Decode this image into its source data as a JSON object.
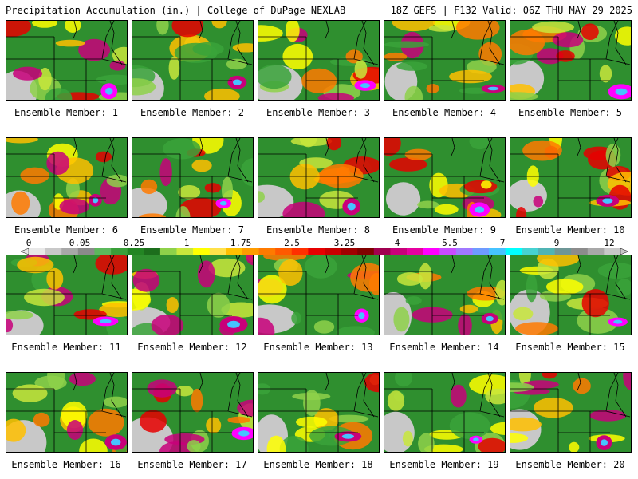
{
  "header": {
    "left": "Precipitation Accumulation (in.) | College of DuPage NEXLAB",
    "right": "18Z GEFS | F132 Valid: 06Z THU MAY 29 2025"
  },
  "color_scale": {
    "labels": [
      "0",
      "0.05",
      "0.25",
      "1",
      "1.75",
      "2.5",
      "3.25",
      "4",
      "5.5",
      "7",
      "9",
      "12"
    ],
    "colors": [
      "#e8e8e8",
      "#c8c8c8",
      "#a8a8a8",
      "#8a8a8a",
      "#5cb85c",
      "#3a9f3a",
      "#238523",
      "#1c6e1c",
      "#8ed14a",
      "#c8e63c",
      "#ffff00",
      "#ffe14a",
      "#ffc000",
      "#ff9c00",
      "#ff7a00",
      "#ff5a00",
      "#ff3000",
      "#e60000",
      "#c80000",
      "#a00000",
      "#800000",
      "#a00050",
      "#c8007a",
      "#e600a0",
      "#ff00ff",
      "#c84bff",
      "#a078ff",
      "#6e9bff",
      "#46c3ff",
      "#00ffff",
      "#46d2d2",
      "#50b4b4",
      "#6e9696",
      "#8c8c8c",
      "#a8a8a8",
      "#c8c8c8"
    ]
  },
  "members": [
    {
      "label": "Ensemble Member: 1"
    },
    {
      "label": "Ensemble Member: 2"
    },
    {
      "label": "Ensemble Member: 3"
    },
    {
      "label": "Ensemble Member: 4"
    },
    {
      "label": "Ensemble Member: 5"
    },
    {
      "label": "Ensemble Member: 6"
    },
    {
      "label": "Ensemble Member: 7"
    },
    {
      "label": "Ensemble Member: 8"
    },
    {
      "label": "Ensemble Member: 9"
    },
    {
      "label": "Ensemble Member: 10"
    },
    {
      "label": "Ensemble Member: 11"
    },
    {
      "label": "Ensemble Member: 12"
    },
    {
      "label": "Ensemble Member: 13"
    },
    {
      "label": "Ensemble Member: 14"
    },
    {
      "label": "Ensemble Member: 15"
    },
    {
      "label": "Ensemble Member: 16"
    },
    {
      "label": "Ensemble Member: 17"
    },
    {
      "label": "Ensemble Member: 18"
    },
    {
      "label": "Ensemble Member: 19"
    },
    {
      "label": "Ensemble Member: 20"
    }
  ]
}
